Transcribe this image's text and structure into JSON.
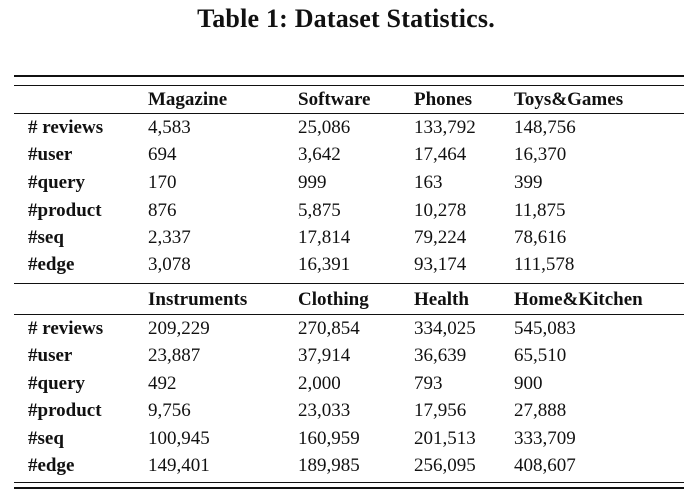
{
  "caption": "Table 1: Dataset Statistics.",
  "panels": [
    {
      "columns": [
        "Magazine",
        "Software",
        "Phones",
        "Toys&Games"
      ],
      "rows": [
        {
          "label": "# reviews",
          "values": [
            "4,583",
            "25,086",
            "133,792",
            "148,756"
          ]
        },
        {
          "label": "#user",
          "values": [
            "694",
            "3,642",
            "17,464",
            "16,370"
          ]
        },
        {
          "label": "#query",
          "values": [
            "170",
            "999",
            "163",
            "399"
          ]
        },
        {
          "label": "#product",
          "values": [
            "876",
            "5,875",
            "10,278",
            "11,875"
          ]
        },
        {
          "label": "#seq",
          "values": [
            "2,337",
            "17,814",
            "79,224",
            "78,616"
          ]
        },
        {
          "label": "#edge",
          "values": [
            "3,078",
            "16,391",
            "93,174",
            "111,578"
          ]
        }
      ]
    },
    {
      "columns": [
        "Instruments",
        "Clothing",
        "Health",
        "Home&Kitchen"
      ],
      "rows": [
        {
          "label": "# reviews",
          "values": [
            "209,229",
            "270,854",
            "334,025",
            "545,083"
          ]
        },
        {
          "label": "#user",
          "values": [
            "23,887",
            "37,914",
            "36,639",
            "65,510"
          ]
        },
        {
          "label": "#query",
          "values": [
            "492",
            "2,000",
            "793",
            "900"
          ]
        },
        {
          "label": "#product",
          "values": [
            "9,756",
            "23,033",
            "17,956",
            "27,888"
          ]
        },
        {
          "label": "#seq",
          "values": [
            "100,945",
            "160,959",
            "201,513",
            "333,709"
          ]
        },
        {
          "label": "#edge",
          "values": [
            "149,401",
            "189,985",
            "256,095",
            "408,607"
          ]
        }
      ]
    }
  ]
}
